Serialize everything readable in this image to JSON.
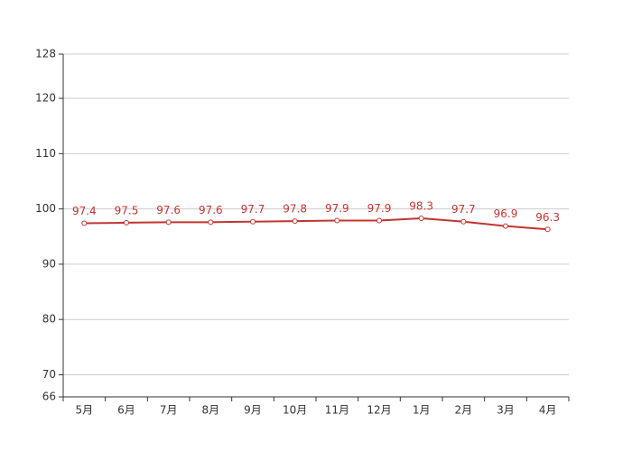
{
  "chart_data": {
    "type": "line",
    "categories": [
      "5月",
      "6月",
      "7月",
      "8月",
      "9月",
      "10月",
      "11月",
      "12月",
      "1月",
      "2月",
      "3月",
      "4月"
    ],
    "series": [
      {
        "color": "#c23531",
        "values": [
          97.4,
          97.5,
          97.6,
          97.6,
          97.7,
          97.8,
          97.9,
          97.9,
          98.3,
          97.7,
          96.9,
          96.3
        ]
      }
    ],
    "ylim": [
      66,
      128
    ],
    "yticks": [
      66,
      70,
      80,
      90,
      100,
      110,
      120,
      128
    ],
    "grid": true
  }
}
